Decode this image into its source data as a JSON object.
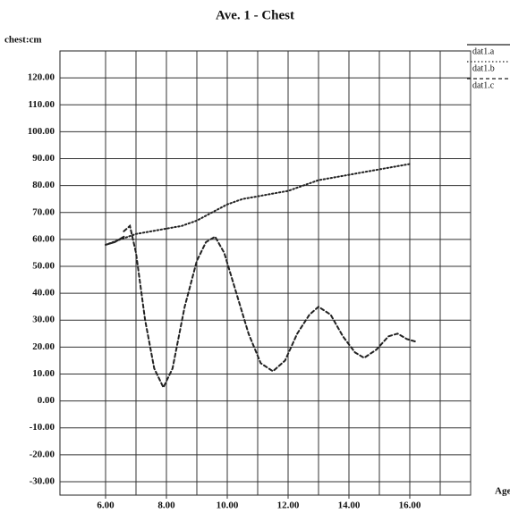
{
  "chart_data": {
    "type": "line",
    "title": "Ave. 1 - Chest",
    "y_label": "chest:cm",
    "x_label": "Age",
    "xlim": [
      4.5,
      18
    ],
    "ylim": [
      -35,
      130
    ],
    "xticks": [
      {
        "value": 6,
        "label": "6.00"
      },
      {
        "value": 8,
        "label": "8.00"
      },
      {
        "value": 10,
        "label": "10.00"
      },
      {
        "value": 12,
        "label": "12.00"
      },
      {
        "value": 14,
        "label": "14.00"
      },
      {
        "value": 16,
        "label": "16.00"
      }
    ],
    "xgrid": [
      6,
      7,
      8,
      9,
      10,
      11,
      12,
      13,
      14,
      15,
      16,
      17,
      18
    ],
    "yticks": [
      {
        "value": 120,
        "label": "120.00"
      },
      {
        "value": 110,
        "label": "110.00"
      },
      {
        "value": 100,
        "label": "100.00"
      },
      {
        "value": 90,
        "label": "90.00"
      },
      {
        "value": 80,
        "label": "80.00"
      },
      {
        "value": 70,
        "label": "70.00"
      },
      {
        "value": 60,
        "label": "60.00"
      },
      {
        "value": 50,
        "label": "50.00"
      },
      {
        "value": 40,
        "label": "40.00"
      },
      {
        "value": 30,
        "label": "30.00"
      },
      {
        "value": 20,
        "label": "20.00"
      },
      {
        "value": 10,
        "label": "10.00"
      },
      {
        "value": 0,
        "label": "0.00"
      },
      {
        "value": -10,
        "label": "-10.00"
      },
      {
        "value": -20,
        "label": "-20.00"
      },
      {
        "value": -30,
        "label": "-30.00"
      }
    ],
    "grid": true,
    "series": [
      {
        "name": "dat1.a",
        "color": "#222222",
        "dash": "solid",
        "x": [
          6.0,
          6.3,
          6.6
        ],
        "values": [
          58,
          59,
          61
        ]
      },
      {
        "name": "dat1.b",
        "color": "#222222",
        "dash": "dotted",
        "x": [
          6.0,
          6.5,
          7.0,
          7.5,
          8.0,
          8.5,
          9.0,
          9.5,
          10.0,
          10.5,
          11.0,
          11.5,
          12.0,
          12.5,
          13.0,
          13.5,
          14.0,
          14.5,
          15.0,
          15.5,
          16.0
        ],
        "values": [
          58,
          60,
          62,
          63,
          64,
          65,
          67,
          70,
          73,
          75,
          76,
          77,
          78,
          80,
          82,
          83,
          84,
          85,
          86,
          87,
          88
        ]
      },
      {
        "name": "dat1.c",
        "color": "#222222",
        "dash": "dashed",
        "x": [
          6.6,
          6.8,
          7.0,
          7.3,
          7.6,
          7.9,
          8.2,
          8.6,
          9.0,
          9.3,
          9.6,
          9.9,
          10.3,
          10.7,
          11.1,
          11.5,
          11.9,
          12.3,
          12.7,
          13.0,
          13.4,
          13.8,
          14.2,
          14.5,
          14.9,
          15.3,
          15.6,
          15.9,
          16.2
        ],
        "values": [
          63,
          65,
          55,
          30,
          12,
          5,
          12,
          35,
          52,
          59,
          61,
          55,
          40,
          25,
          14,
          11,
          15,
          25,
          32,
          35,
          32,
          24,
          18,
          16,
          19,
          24,
          25,
          23,
          22
        ]
      }
    ]
  }
}
